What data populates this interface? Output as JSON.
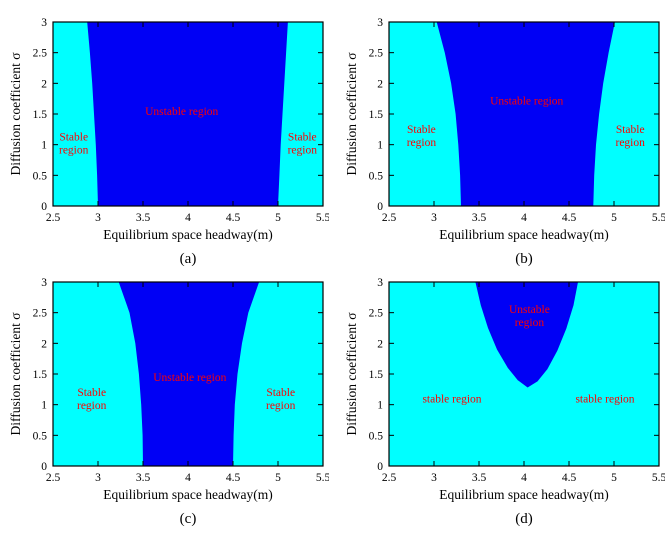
{
  "colors": {
    "stable": "#00FFFF",
    "unstable": "#0000F5",
    "label": "#FF0000",
    "axis": "#000000"
  },
  "chart_data": [
    {
      "type": "area",
      "caption": "(a)",
      "xlabel": "Equilibrium space headway(m)",
      "ylabel": "Diffusion coefficient σ",
      "xlim": [
        2.5,
        5.5
      ],
      "ylim": [
        0,
        3
      ],
      "xticks": [
        "2.5",
        "3",
        "3.5",
        "4",
        "4.5",
        "5",
        "5.5"
      ],
      "yticks": [
        "0",
        "0.5",
        "1",
        "1.5",
        "2",
        "2.5",
        "3"
      ],
      "grid": false,
      "unstable_polygon": [
        [
          3.0,
          0
        ],
        [
          2.99,
          0.5
        ],
        [
          2.975,
          1
        ],
        [
          2.955,
          1.5
        ],
        [
          2.935,
          2
        ],
        [
          2.91,
          2.5
        ],
        [
          2.88,
          3
        ],
        [
          5.11,
          3
        ],
        [
          5.09,
          2.5
        ],
        [
          5.07,
          2
        ],
        [
          5.05,
          1.5
        ],
        [
          5.03,
          1
        ],
        [
          5.015,
          0.5
        ],
        [
          5.0,
          0
        ]
      ],
      "labels": [
        {
          "text_lines": [
            "Unstable region"
          ],
          "x": 3.93,
          "y": 1.55
        },
        {
          "text_lines": [
            "Stable",
            "region"
          ],
          "x": 2.73,
          "y": 1.03
        },
        {
          "text_lines": [
            "Stable",
            "region"
          ],
          "x": 5.27,
          "y": 1.03
        }
      ]
    },
    {
      "type": "area",
      "caption": "(b)",
      "xlabel": "Equilibrium space headway(m)",
      "ylabel": "Diffusion coefficient σ",
      "xlim": [
        2.5,
        5.5
      ],
      "ylim": [
        0,
        3
      ],
      "xticks": [
        "2.5",
        "3",
        "3.5",
        "4",
        "4.5",
        "5",
        "5.5"
      ],
      "yticks": [
        "0",
        "0.5",
        "1",
        "1.5",
        "2",
        "2.5",
        "3"
      ],
      "grid": false,
      "unstable_polygon": [
        [
          3.3,
          0
        ],
        [
          3.29,
          0.5
        ],
        [
          3.27,
          1
        ],
        [
          3.24,
          1.5
        ],
        [
          3.19,
          2
        ],
        [
          3.12,
          2.5
        ],
        [
          3.03,
          3
        ],
        [
          5.01,
          3
        ],
        [
          4.94,
          2.5
        ],
        [
          4.88,
          2
        ],
        [
          4.835,
          1.5
        ],
        [
          4.8,
          1
        ],
        [
          4.78,
          0.5
        ],
        [
          4.77,
          0
        ]
      ],
      "labels": [
        {
          "text_lines": [
            "Unstable region"
          ],
          "x": 4.03,
          "y": 1.72
        },
        {
          "text_lines": [
            "Stable",
            "region"
          ],
          "x": 2.86,
          "y": 1.15
        },
        {
          "text_lines": [
            "Stable",
            "region"
          ],
          "x": 5.18,
          "y": 1.15
        }
      ]
    },
    {
      "type": "area",
      "caption": "(c)",
      "xlabel": "Equilibrium space headway(m)",
      "ylabel": "Diffusion coefficient σ",
      "xlim": [
        2.5,
        5.5
      ],
      "ylim": [
        0,
        3
      ],
      "xticks": [
        "2.5",
        "3",
        "3.5",
        "4",
        "4.5",
        "5",
        "5.5"
      ],
      "yticks": [
        "0",
        "0.5",
        "1",
        "1.5",
        "2",
        "2.5",
        "3"
      ],
      "grid": false,
      "unstable_polygon": [
        [
          3.5,
          0
        ],
        [
          3.495,
          0.5
        ],
        [
          3.48,
          1
        ],
        [
          3.455,
          1.5
        ],
        [
          3.415,
          2
        ],
        [
          3.35,
          2.5
        ],
        [
          3.23,
          3
        ],
        [
          4.79,
          3
        ],
        [
          4.67,
          2.5
        ],
        [
          4.6,
          2
        ],
        [
          4.55,
          1.5
        ],
        [
          4.52,
          1
        ],
        [
          4.507,
          0.5
        ],
        [
          4.5,
          0
        ]
      ],
      "labels": [
        {
          "text_lines": [
            "Unstable region"
          ],
          "x": 4.02,
          "y": 1.45
        },
        {
          "text_lines": [
            "Stable",
            "region"
          ],
          "x": 2.93,
          "y": 1.1
        },
        {
          "text_lines": [
            "Stable",
            "region"
          ],
          "x": 5.03,
          "y": 1.1
        }
      ]
    },
    {
      "type": "area",
      "caption": "(d)",
      "xlabel": "Equilibrium space headway(m)",
      "ylabel": "Diffusion coefficient σ",
      "xlim": [
        2.5,
        5.5
      ],
      "ylim": [
        0,
        3
      ],
      "xticks": [
        "2.5",
        "3",
        "3.5",
        "4",
        "4.5",
        "5",
        "5.5"
      ],
      "yticks": [
        "0",
        "0.5",
        "1",
        "1.5",
        "2",
        "2.5",
        "3"
      ],
      "grid": false,
      "unstable_polygon": [
        [
          3.46,
          3
        ],
        [
          3.52,
          2.62
        ],
        [
          3.6,
          2.25
        ],
        [
          3.7,
          1.9
        ],
        [
          3.82,
          1.6
        ],
        [
          3.93,
          1.4
        ],
        [
          4.04,
          1.28
        ],
        [
          4.15,
          1.38
        ],
        [
          4.26,
          1.58
        ],
        [
          4.37,
          1.88
        ],
        [
          4.47,
          2.24
        ],
        [
          4.55,
          2.62
        ],
        [
          4.6,
          3
        ]
      ],
      "labels": [
        {
          "text_lines": [
            "Unstable",
            "region"
          ],
          "x": 4.06,
          "y": 2.45
        },
        {
          "text_lines": [
            "stable region"
          ],
          "x": 3.2,
          "y": 1.1
        },
        {
          "text_lines": [
            "stable region"
          ],
          "x": 4.9,
          "y": 1.1
        }
      ]
    }
  ]
}
